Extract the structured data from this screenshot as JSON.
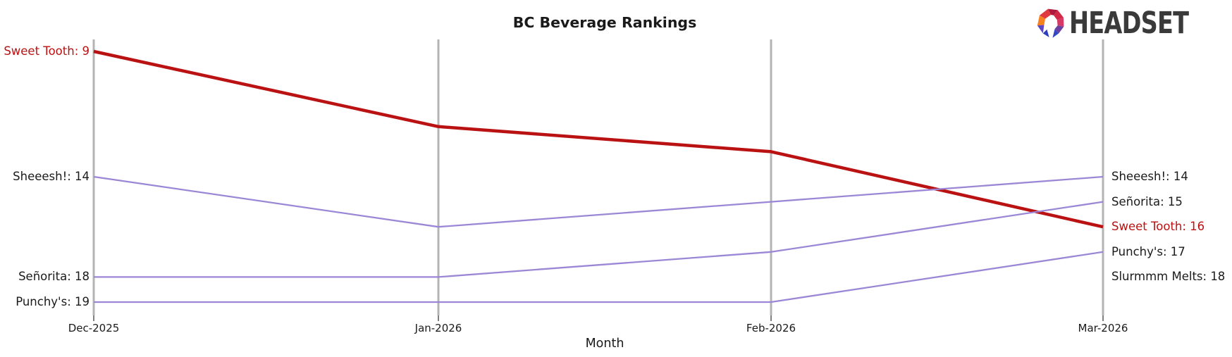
{
  "header": {
    "logo_text": "HEADSET"
  },
  "chart_data": {
    "type": "line",
    "subtype": "bump-ranking-chart",
    "title": "BC Beverage Rankings",
    "xlabel": "Month",
    "ylabel": "",
    "x_ticks": [
      "Dec-2025",
      "Jan-2026",
      "Feb-2026",
      "Mar-2026"
    ],
    "ylim": [
      9,
      19
    ],
    "y_axis_note": "rank, lower is better, axis hidden",
    "grid": "vertical month axes only",
    "legend_position": "inline labels at line endpoints",
    "series": [
      {
        "name": "Sweet Tooth",
        "ranks": [
          9,
          12,
          13,
          16
        ],
        "color": "#ba1212",
        "highlight": true
      },
      {
        "name": "Sheeesh!",
        "ranks": [
          14,
          16,
          15,
          14
        ],
        "color": "#9b87d6",
        "highlight": false
      },
      {
        "name": "Señorita",
        "ranks": [
          18,
          18,
          17,
          15
        ],
        "color": "#9b87d6",
        "highlight": false
      },
      {
        "name": "Punchy's",
        "ranks": [
          19,
          19,
          19,
          17
        ],
        "color": "#9b87d6",
        "highlight": false
      },
      {
        "name": "Slurmmm Melts",
        "ranks": [
          null,
          null,
          null,
          18
        ],
        "color": "#1a1a1a",
        "highlight": false,
        "label_only": true
      }
    ],
    "left_labels": [
      {
        "text": "Sweet Tooth: 9",
        "rank": 9,
        "color": "#ba1212"
      },
      {
        "text": "Sheeesh!: 14",
        "rank": 14,
        "color": "#1a1a1a"
      },
      {
        "text": "Señorita: 18",
        "rank": 18,
        "color": "#1a1a1a"
      },
      {
        "text": "Punchy's: 19",
        "rank": 19,
        "color": "#1a1a1a"
      }
    ],
    "right_labels": [
      {
        "text": "Sheeesh!: 14",
        "rank": 14,
        "color": "#1a1a1a"
      },
      {
        "text": "Señorita: 15",
        "rank": 15,
        "color": "#1a1a1a"
      },
      {
        "text": "Sweet Tooth: 16",
        "rank": 16,
        "color": "#ba1212"
      },
      {
        "text": "Punchy's: 17",
        "rank": 17,
        "color": "#1a1a1a"
      },
      {
        "text": "Slurmmm Melts: 18",
        "rank": 18,
        "color": "#1a1a1a"
      }
    ],
    "colors": {
      "highlight_line": "#ba1212",
      "default_line": "#9b87d6",
      "month_axis": "#b4b4b4",
      "tick": "#555555",
      "text": "#1a1a1a"
    }
  }
}
